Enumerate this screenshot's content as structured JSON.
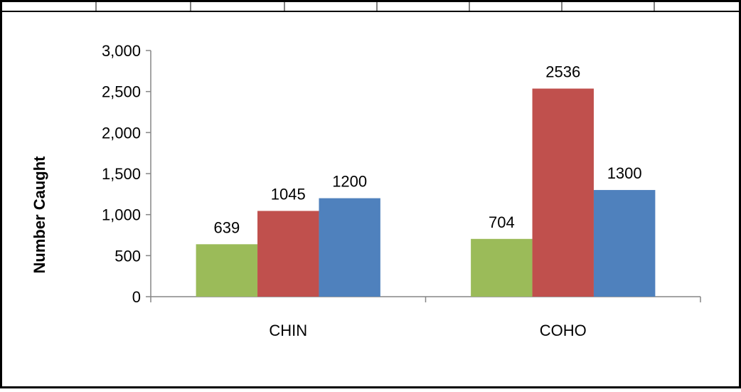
{
  "chart_data": {
    "type": "bar",
    "title": "",
    "xlabel": "",
    "ylabel": "Number Caught",
    "categories": [
      "CHIN",
      "COHO"
    ],
    "series": [
      {
        "values": [
          639,
          704
        ],
        "color": "#9bbb59",
        "labels": [
          "639",
          "704"
        ]
      },
      {
        "values": [
          1045,
          2536
        ],
        "color": "#c0504d",
        "labels": [
          "1045",
          "2536"
        ]
      },
      {
        "values": [
          1200,
          1300
        ],
        "color": "#4f81bd",
        "labels": [
          "1200",
          "1300"
        ]
      }
    ],
    "ylim": [
      0,
      3000
    ],
    "yticks": [
      0,
      500,
      1000,
      1500,
      2000,
      2500,
      3000
    ],
    "ytick_labels": [
      "0",
      "500",
      "1,000",
      "1,500",
      "2,000",
      "2,500",
      "3,000"
    ],
    "grid": false,
    "legend": "none"
  }
}
